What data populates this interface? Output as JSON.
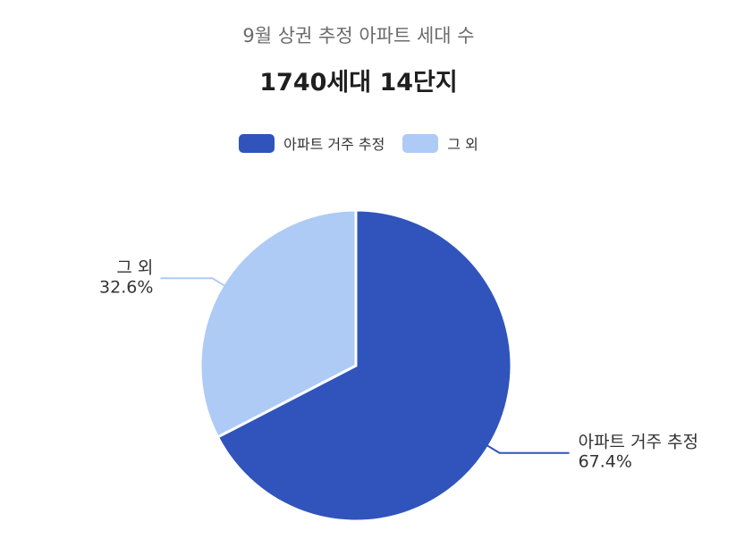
{
  "chart_data": {
    "type": "pie",
    "subtitle": "9월 상권 추정 아파트 세대 수",
    "title": "1740세대 14단지",
    "legend_position": "top",
    "series": [
      {
        "name": "아파트 거주 추정",
        "value": 67.4,
        "label": "67.4%",
        "color": "#3054bb"
      },
      {
        "name": "그 외",
        "value": 32.6,
        "label": "32.6%",
        "color": "#aecbf6"
      }
    ]
  }
}
